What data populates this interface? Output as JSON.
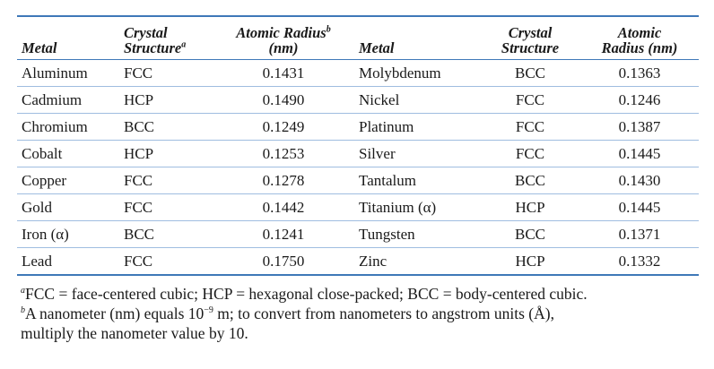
{
  "header": {
    "metal": "Metal",
    "crystal_1": "Crystal",
    "structure_1": "Structure",
    "mark_a": "a",
    "atomic_radius_1": "Atomic Radius",
    "mark_b": "b",
    "unit_1": "(nm)",
    "crystal_2": "Crystal",
    "structure_2": "Structure",
    "atomic_2": "Atomic",
    "radius_unit_2": "Radius (nm)"
  },
  "rows": [
    {
      "m1": "Aluminum",
      "s1": "FCC",
      "r1": "0.1431",
      "m2": "Molybdenum",
      "s2": "BCC",
      "r2": "0.1363"
    },
    {
      "m1": "Cadmium",
      "s1": "HCP",
      "r1": "0.1490",
      "m2": "Nickel",
      "s2": "FCC",
      "r2": "0.1246"
    },
    {
      "m1": "Chromium",
      "s1": "BCC",
      "r1": "0.1249",
      "m2": "Platinum",
      "s2": "FCC",
      "r2": "0.1387"
    },
    {
      "m1": "Cobalt",
      "s1": "HCP",
      "r1": "0.1253",
      "m2": "Silver",
      "s2": "FCC",
      "r2": "0.1445"
    },
    {
      "m1": "Copper",
      "s1": "FCC",
      "r1": "0.1278",
      "m2": "Tantalum",
      "s2": "BCC",
      "r2": "0.1430"
    },
    {
      "m1": "Gold",
      "s1": "FCC",
      "r1": "0.1442",
      "m2": "Titanium (α)",
      "s2": "HCP",
      "r2": "0.1445"
    },
    {
      "m1": "Iron (α)",
      "s1": "BCC",
      "r1": "0.1241",
      "m2": "Tungsten",
      "s2": "BCC",
      "r2": "0.1371"
    },
    {
      "m1": "Lead",
      "s1": "FCC",
      "r1": "0.1750",
      "m2": "Zinc",
      "s2": "HCP",
      "r2": "0.1332"
    }
  ],
  "footnotes": {
    "a_mark": "a",
    "a_text": "FCC = face-centered cubic; HCP = hexagonal close-packed; BCC = body-centered cubic.",
    "b_mark": "b",
    "b_text_1": "A nanometer (nm) equals 10",
    "b_exp": "−9",
    "b_text_2": " m; to convert from nanometers to angstrom units (Å),",
    "b_text_3": "multiply the nanometer value by 10."
  }
}
